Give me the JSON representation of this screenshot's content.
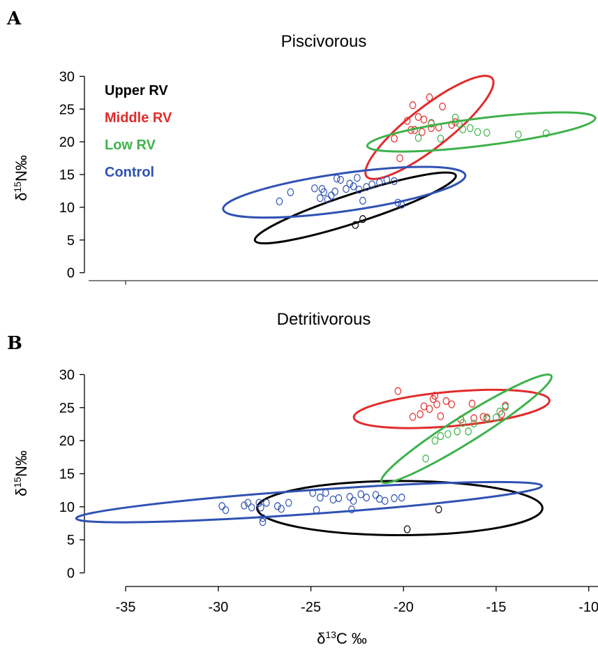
{
  "colors": {
    "Upper RV": "#000000",
    "Middle RV": "#e32b2b",
    "Low RV": "#3db24a",
    "Control": "#2f52b3"
  },
  "x_axis": {
    "label_delta": "δ",
    "label_sup": "13",
    "label_rest": "C ‰",
    "ticks": [
      -35,
      -30,
      -25,
      -20,
      -15,
      -10
    ],
    "tick_labels": [
      "-35",
      "-30",
      "-25",
      "-20",
      "-15",
      "-10"
    ],
    "xlim": [
      -37,
      -9.5
    ]
  },
  "chart_data": [
    {
      "panel": "A",
      "type": "scatter",
      "title": "Piscivorous",
      "ylabel": "δ15N‰",
      "ylim": [
        -1,
        31
      ],
      "yticks": [
        0,
        5,
        10,
        15,
        20,
        25,
        30
      ],
      "ytick_labels": [
        "0",
        "5",
        "10",
        "15",
        "20",
        "25",
        "30"
      ],
      "legend": [
        "Upper RV",
        "Middle RV",
        "Low RV",
        "Control"
      ],
      "legend_position": "top-left",
      "series": [
        {
          "name": "Upper RV",
          "points": [
            [
              -22.6,
              7.3
            ],
            [
              -22.2,
              8.2
            ]
          ],
          "ellipse": {
            "cx": -22.6,
            "cy": 9.9,
            "rx": 5.7,
            "ry": 2.2,
            "angle": 18
          }
        },
        {
          "name": "Middle RV",
          "points": [
            [
              -19.5,
              25.6
            ],
            [
              -18.6,
              26.8
            ],
            [
              -17.9,
              25.4
            ],
            [
              -19.2,
              23.8
            ],
            [
              -18.9,
              23.4
            ],
            [
              -18.5,
              22.8
            ],
            [
              -19.6,
              21.8
            ],
            [
              -19.4,
              21.8
            ],
            [
              -19.0,
              21.5
            ],
            [
              -18.5,
              22.1
            ],
            [
              -18.1,
              22.2
            ],
            [
              -17.4,
              22.6
            ],
            [
              -17.2,
              23.0
            ],
            [
              -19.8,
              23.2
            ],
            [
              -20.5,
              20.5
            ],
            [
              -20.2,
              17.5
            ]
          ],
          "ellipse": {
            "cx": -18.6,
            "cy": 22.2,
            "rx": 4.3,
            "ry": 3.1,
            "angle": 38
          }
        },
        {
          "name": "Low RV",
          "points": [
            [
              -18.5,
              22.9
            ],
            [
              -16.4,
              22.1
            ],
            [
              -17.2,
              23.7
            ],
            [
              -17.0,
              22.8
            ],
            [
              -16.8,
              21.9
            ],
            [
              -16.0,
              21.5
            ],
            [
              -15.5,
              21.4
            ],
            [
              -13.8,
              21.1
            ],
            [
              -12.3,
              21.3
            ],
            [
              -18.0,
              20.5
            ],
            [
              -19.2,
              20.6
            ]
          ],
          "ellipse": {
            "cx": -15.8,
            "cy": 21.5,
            "rx": 6.2,
            "ry": 2.1,
            "angle": 7
          }
        },
        {
          "name": "Control",
          "points": [
            [
              -26.7,
              10.9
            ],
            [
              -26.1,
              12.3
            ],
            [
              -24.4,
              12.8
            ],
            [
              -24.3,
              12.3
            ],
            [
              -24.5,
              11.4
            ],
            [
              -23.9,
              11.8
            ],
            [
              -23.6,
              14.4
            ],
            [
              -23.4,
              14.2
            ],
            [
              -23.1,
              12.8
            ],
            [
              -22.9,
              13.6
            ],
            [
              -22.7,
              13.2
            ],
            [
              -22.5,
              14.5
            ],
            [
              -22.4,
              12.7
            ],
            [
              -22.2,
              11.0
            ],
            [
              -21.7,
              13.5
            ],
            [
              -21.3,
              13.8
            ],
            [
              -20.9,
              14.2
            ],
            [
              -20.5,
              14.0
            ],
            [
              -20.3,
              10.7
            ],
            [
              -20.1,
              10.4
            ],
            [
              -24.1,
              11.2
            ],
            [
              -23.7,
              12.4
            ],
            [
              -22.0,
              13.1
            ],
            [
              -24.8,
              12.9
            ]
          ],
          "ellipse": {
            "cx": -23.2,
            "cy": 12.3,
            "rx": 6.6,
            "ry": 2.9,
            "angle": 8
          }
        }
      ]
    },
    {
      "panel": "B",
      "type": "scatter",
      "title": "Detritivorous",
      "ylabel": "δ15N‰",
      "ylim": [
        -1,
        31
      ],
      "yticks": [
        0,
        5,
        10,
        15,
        20,
        25,
        30
      ],
      "ytick_labels": [
        "0",
        "5",
        "10",
        "15",
        "20",
        "25",
        "30"
      ],
      "xlabel": "δ13C ‰",
      "series": [
        {
          "name": "Upper RV",
          "points": [
            [
              -19.8,
              6.6
            ],
            [
              -18.1,
              9.6
            ]
          ],
          "ellipse": {
            "cx": -20.2,
            "cy": 9.8,
            "rx": 7.7,
            "ry": 4.1,
            "angle": 0
          }
        },
        {
          "name": "Middle RV",
          "points": [
            [
              -20.3,
              27.5
            ],
            [
              -19.5,
              23.6
            ],
            [
              -19.1,
              24.0
            ],
            [
              -18.9,
              25.2
            ],
            [
              -18.6,
              24.8
            ],
            [
              -18.4,
              26.3
            ],
            [
              -18.3,
              26.8
            ],
            [
              -18.2,
              25.5
            ],
            [
              -18.0,
              23.7
            ],
            [
              -17.7,
              26.0
            ],
            [
              -17.4,
              25.5
            ],
            [
              -16.9,
              23.2
            ],
            [
              -16.3,
              25.6
            ],
            [
              -16.2,
              23.4
            ],
            [
              -15.7,
              23.6
            ],
            [
              -15.5,
              23.5
            ],
            [
              -14.7,
              24.0
            ],
            [
              -14.5,
              25.3
            ]
          ],
          "ellipse": {
            "cx": -17.4,
            "cy": 24.8,
            "rx": 5.3,
            "ry": 2.6,
            "angle": 5
          }
        },
        {
          "name": "Low RV",
          "points": [
            [
              -18.8,
              17.3
            ],
            [
              -18.3,
              20.0
            ],
            [
              -18.0,
              20.7
            ],
            [
              -17.6,
              21.0
            ],
            [
              -17.1,
              21.4
            ],
            [
              -16.8,
              22.7
            ],
            [
              -16.5,
              21.4
            ],
            [
              -16.2,
              22.6
            ],
            [
              -15.5,
              23.3
            ],
            [
              -15.0,
              23.5
            ],
            [
              -14.8,
              24.4
            ],
            [
              -14.5,
              25.1
            ]
          ],
          "ellipse": {
            "cx": -16.6,
            "cy": 21.8,
            "rx": 5.4,
            "ry": 2.0,
            "angle": 32
          }
        },
        {
          "name": "Control",
          "points": [
            [
              -29.8,
              10.1
            ],
            [
              -29.6,
              9.5
            ],
            [
              -28.6,
              10.2
            ],
            [
              -28.4,
              10.6
            ],
            [
              -28.2,
              9.9
            ],
            [
              -27.8,
              10.6
            ],
            [
              -27.6,
              8.3
            ],
            [
              -27.4,
              10.6
            ],
            [
              -27.7,
              9.9
            ],
            [
              -27.6,
              7.7
            ],
            [
              -26.8,
              10.1
            ],
            [
              -26.6,
              9.7
            ],
            [
              -26.2,
              10.6
            ],
            [
              -24.9,
              12.1
            ],
            [
              -24.7,
              9.5
            ],
            [
              -24.5,
              11.4
            ],
            [
              -24.2,
              12.1
            ],
            [
              -23.8,
              11.1
            ],
            [
              -23.5,
              11.3
            ],
            [
              -22.9,
              11.5
            ],
            [
              -22.7,
              10.9
            ],
            [
              -22.3,
              11.9
            ],
            [
              -22.0,
              11.4
            ],
            [
              -21.5,
              11.8
            ],
            [
              -21.3,
              11.2
            ],
            [
              -21.0,
              10.9
            ],
            [
              -20.5,
              11.3
            ],
            [
              -20.1,
              11.4
            ],
            [
              -22.8,
              9.6
            ]
          ],
          "ellipse": {
            "cx": -25.1,
            "cy": 10.7,
            "rx": 12.6,
            "ry": 1.8,
            "angle": 4
          }
        }
      ]
    }
  ]
}
